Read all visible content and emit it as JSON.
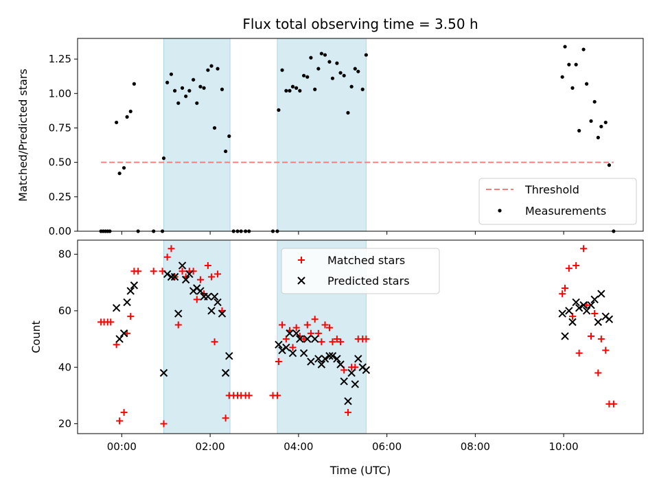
{
  "chart_data": [
    {
      "type": "scatter",
      "title": "Flux total observing time = 3.50 h",
      "xlabel": "",
      "ylabel": "Matched/Predicted stars",
      "ylim": [
        0,
        1.4
      ],
      "yticks": [
        0.0,
        0.25,
        0.5,
        0.75,
        1.0,
        1.25
      ],
      "ytick_labels": [
        "0.00",
        "0.25",
        "0.50",
        "0.75",
        "1.00",
        "1.25"
      ],
      "xlim_hours": [
        -1.0,
        11.8
      ],
      "xticks_hours": [
        0,
        2,
        4,
        6,
        8,
        10
      ],
      "shaded_intervals_hours": [
        [
          0.95,
          2.45
        ],
        [
          3.52,
          5.53
        ]
      ],
      "legend_position": "lower-right",
      "threshold": {
        "name": "Threshold",
        "value": 0.5,
        "x_range_hours": [
          -0.47,
          11.13
        ],
        "color": "#f08080"
      },
      "series": [
        {
          "name": "Measurements",
          "marker": "dot",
          "color": "#000000",
          "points": [
            [
              -0.47,
              0
            ],
            [
              -0.42,
              0
            ],
            [
              -0.37,
              0
            ],
            [
              -0.32,
              0
            ],
            [
              -0.27,
              0
            ],
            [
              -0.12,
              0.79
            ],
            [
              -0.05,
              0.42
            ],
            [
              0.05,
              0.46
            ],
            [
              0.12,
              0.83
            ],
            [
              0.2,
              0.87
            ],
            [
              0.28,
              1.07
            ],
            [
              0.37,
              0
            ],
            [
              0.72,
              0
            ],
            [
              0.92,
              0
            ],
            [
              0.95,
              0.53
            ],
            [
              1.03,
              1.08
            ],
            [
              1.12,
              1.14
            ],
            [
              1.2,
              1.02
            ],
            [
              1.28,
              0.93
            ],
            [
              1.37,
              1.04
            ],
            [
              1.45,
              0.98
            ],
            [
              1.53,
              1.02
            ],
            [
              1.62,
              1.1
            ],
            [
              1.7,
              0.93
            ],
            [
              1.78,
              1.05
            ],
            [
              1.86,
              1.04
            ],
            [
              1.95,
              1.17
            ],
            [
              2.03,
              1.2
            ],
            [
              2.1,
              0.75
            ],
            [
              2.17,
              1.18
            ],
            [
              2.27,
              1.03
            ],
            [
              2.35,
              0.58
            ],
            [
              2.43,
              0.69
            ],
            [
              2.53,
              0
            ],
            [
              2.62,
              0
            ],
            [
              2.7,
              0
            ],
            [
              2.8,
              0
            ],
            [
              2.88,
              0
            ],
            [
              3.42,
              0
            ],
            [
              3.52,
              0
            ],
            [
              3.55,
              0.88
            ],
            [
              3.63,
              1.17
            ],
            [
              3.72,
              1.02
            ],
            [
              3.8,
              1.02
            ],
            [
              3.87,
              1.05
            ],
            [
              3.95,
              1.04
            ],
            [
              4.03,
              1.02
            ],
            [
              4.12,
              1.13
            ],
            [
              4.2,
              1.12
            ],
            [
              4.28,
              1.26
            ],
            [
              4.37,
              1.03
            ],
            [
              4.45,
              1.18
            ],
            [
              4.52,
              1.29
            ],
            [
              4.6,
              1.28
            ],
            [
              4.7,
              1.23
            ],
            [
              4.77,
              1.11
            ],
            [
              4.87,
              1.22
            ],
            [
              4.95,
              1.15
            ],
            [
              5.03,
              1.13
            ],
            [
              5.12,
              0.86
            ],
            [
              5.2,
              1.05
            ],
            [
              5.28,
              1.18
            ],
            [
              5.35,
              1.16
            ],
            [
              5.45,
              1.03
            ],
            [
              5.53,
              1.28
            ],
            [
              9.97,
              1.12
            ],
            [
              10.03,
              1.34
            ],
            [
              10.12,
              1.21
            ],
            [
              10.2,
              1.04
            ],
            [
              10.28,
              1.21
            ],
            [
              10.35,
              0.73
            ],
            [
              10.45,
              1.32
            ],
            [
              10.52,
              1.07
            ],
            [
              10.62,
              0.8
            ],
            [
              10.7,
              0.94
            ],
            [
              10.78,
              0.68
            ],
            [
              10.85,
              0.76
            ],
            [
              10.95,
              0.79
            ],
            [
              11.03,
              0.48
            ],
            [
              11.13,
              0
            ]
          ]
        }
      ]
    },
    {
      "type": "scatter",
      "title": "",
      "xlabel": "Time (UTC)",
      "ylabel": "Count",
      "ylim": [
        16.5,
        85
      ],
      "yticks": [
        20,
        40,
        60,
        80
      ],
      "ytick_labels": [
        "20",
        "40",
        "60",
        "80"
      ],
      "xlim_hours": [
        -1.0,
        11.8
      ],
      "xticks_hours": [
        0,
        2,
        4,
        6,
        8,
        10
      ],
      "xtick_labels": [
        "00:00",
        "02:00",
        "04:00",
        "06:00",
        "08:00",
        "10:00"
      ],
      "shaded_intervals_hours": [
        [
          0.95,
          2.45
        ],
        [
          3.52,
          5.53
        ]
      ],
      "legend_position": "upper-center",
      "series": [
        {
          "name": "Matched stars",
          "marker": "plus",
          "color": "#ff0000",
          "points": [
            [
              -0.47,
              56
            ],
            [
              -0.4,
              56
            ],
            [
              -0.32,
              56
            ],
            [
              -0.25,
              56
            ],
            [
              -0.12,
              48
            ],
            [
              -0.05,
              21
            ],
            [
              0.05,
              24
            ],
            [
              0.12,
              52
            ],
            [
              0.2,
              58
            ],
            [
              0.28,
              74
            ],
            [
              0.37,
              74
            ],
            [
              0.72,
              74
            ],
            [
              0.92,
              74
            ],
            [
              0.95,
              20
            ],
            [
              1.03,
              79
            ],
            [
              1.12,
              82
            ],
            [
              1.2,
              72
            ],
            [
              1.28,
              55
            ],
            [
              1.37,
              74
            ],
            [
              1.45,
              72
            ],
            [
              1.53,
              74
            ],
            [
              1.62,
              74
            ],
            [
              1.7,
              64
            ],
            [
              1.78,
              71
            ],
            [
              1.86,
              66
            ],
            [
              1.95,
              76
            ],
            [
              2.03,
              72
            ],
            [
              2.1,
              49
            ],
            [
              2.17,
              73
            ],
            [
              2.27,
              60
            ],
            [
              2.35,
              22
            ],
            [
              2.43,
              30
            ],
            [
              2.53,
              30
            ],
            [
              2.62,
              30
            ],
            [
              2.7,
              30
            ],
            [
              2.8,
              30
            ],
            [
              2.88,
              30
            ],
            [
              3.42,
              30
            ],
            [
              3.52,
              30
            ],
            [
              3.55,
              42
            ],
            [
              3.63,
              55
            ],
            [
              3.72,
              50
            ],
            [
              3.8,
              53
            ],
            [
              3.87,
              47
            ],
            [
              3.95,
              54
            ],
            [
              4.03,
              51
            ],
            [
              4.12,
              50
            ],
            [
              4.2,
              55
            ],
            [
              4.28,
              52
            ],
            [
              4.37,
              57
            ],
            [
              4.45,
              52
            ],
            [
              4.52,
              49
            ],
            [
              4.6,
              55
            ],
            [
              4.7,
              54
            ],
            [
              4.77,
              49
            ],
            [
              4.87,
              50
            ],
            [
              4.95,
              49
            ],
            [
              5.03,
              39
            ],
            [
              5.12,
              24
            ],
            [
              5.2,
              40
            ],
            [
              5.28,
              40
            ],
            [
              5.35,
              50
            ],
            [
              5.45,
              50
            ],
            [
              5.53,
              50
            ],
            [
              9.97,
              66
            ],
            [
              10.03,
              68
            ],
            [
              10.12,
              75
            ],
            [
              10.2,
              58
            ],
            [
              10.28,
              76
            ],
            [
              10.35,
              45
            ],
            [
              10.45,
              82
            ],
            [
              10.52,
              62
            ],
            [
              10.62,
              51
            ],
            [
              10.7,
              59
            ],
            [
              10.78,
              38
            ],
            [
              10.85,
              50
            ],
            [
              10.95,
              46
            ],
            [
              11.03,
              27
            ],
            [
              11.13,
              27
            ]
          ]
        },
        {
          "name": "Predicted stars",
          "marker": "x",
          "color": "#000000",
          "points": [
            [
              -0.12,
              61
            ],
            [
              -0.05,
              50
            ],
            [
              0.05,
              52
            ],
            [
              0.12,
              63
            ],
            [
              0.2,
              67
            ],
            [
              0.28,
              69
            ],
            [
              0.95,
              38
            ],
            [
              1.03,
              73
            ],
            [
              1.12,
              72
            ],
            [
              1.2,
              72
            ],
            [
              1.28,
              59
            ],
            [
              1.37,
              76
            ],
            [
              1.45,
              71
            ],
            [
              1.53,
              73
            ],
            [
              1.62,
              67
            ],
            [
              1.7,
              68
            ],
            [
              1.78,
              67
            ],
            [
              1.86,
              65
            ],
            [
              1.95,
              65
            ],
            [
              2.03,
              60
            ],
            [
              2.1,
              65
            ],
            [
              2.17,
              63
            ],
            [
              2.27,
              59
            ],
            [
              2.35,
              38
            ],
            [
              2.43,
              44
            ],
            [
              3.55,
              48
            ],
            [
              3.63,
              46
            ],
            [
              3.72,
              47
            ],
            [
              3.8,
              52
            ],
            [
              3.87,
              45
            ],
            [
              3.95,
              52
            ],
            [
              4.03,
              50
            ],
            [
              4.12,
              45
            ],
            [
              4.2,
              50
            ],
            [
              4.28,
              42
            ],
            [
              4.37,
              50
            ],
            [
              4.45,
              43
            ],
            [
              4.52,
              41
            ],
            [
              4.6,
              43
            ],
            [
              4.7,
              44
            ],
            [
              4.77,
              44
            ],
            [
              4.87,
              43
            ],
            [
              4.95,
              41
            ],
            [
              5.03,
              35
            ],
            [
              5.12,
              28
            ],
            [
              5.2,
              38
            ],
            [
              5.28,
              34
            ],
            [
              5.35,
              43
            ],
            [
              5.45,
              40
            ],
            [
              5.53,
              39
            ],
            [
              9.97,
              59
            ],
            [
              10.03,
              51
            ],
            [
              10.12,
              60
            ],
            [
              10.2,
              56
            ],
            [
              10.28,
              63
            ],
            [
              10.35,
              61
            ],
            [
              10.45,
              62
            ],
            [
              10.52,
              60
            ],
            [
              10.62,
              62
            ],
            [
              10.7,
              64
            ],
            [
              10.78,
              56
            ],
            [
              10.85,
              66
            ],
            [
              10.95,
              58
            ],
            [
              11.03,
              57
            ]
          ]
        }
      ]
    }
  ]
}
